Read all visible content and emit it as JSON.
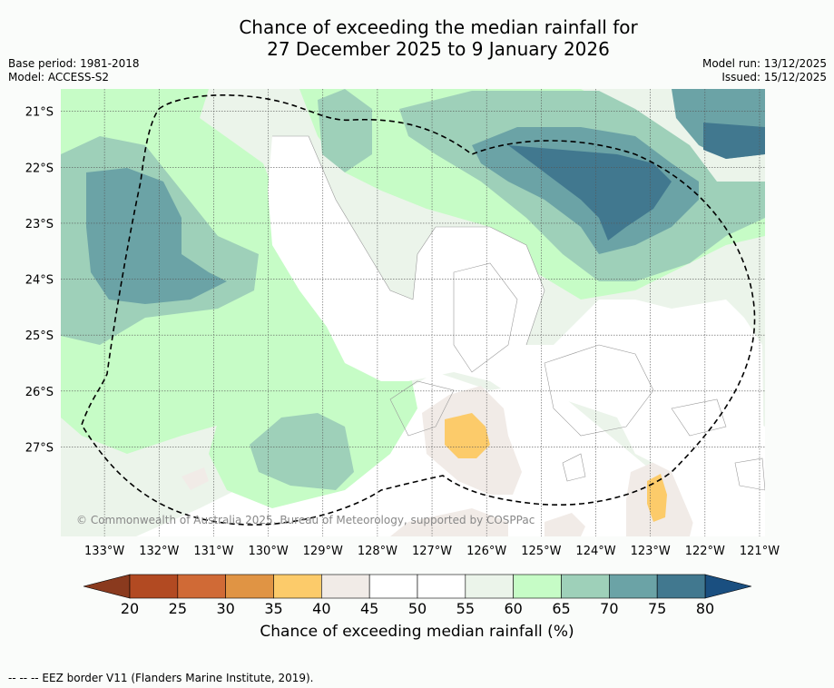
{
  "title": {
    "line1": "Chance of exceeding the median rainfall for",
    "line2": "27 December 2025 to 9 January 2026"
  },
  "meta_left": {
    "base_period": "Base period: 1981-2018",
    "model": "Model: ACCESS-S2"
  },
  "meta_right": {
    "model_run": "Model run: 13/12/2025",
    "issued": "Issued: 15/12/2025"
  },
  "map": {
    "copyright": "© Commonwealth of Australia 2025, Bureau of Meteorology, supported by COSPPac",
    "lat_labels": [
      "21°S",
      "22°S",
      "23°S",
      "24°S",
      "25°S",
      "26°S",
      "27°S"
    ],
    "lon_labels": [
      "133°W",
      "132°W",
      "131°W",
      "130°W",
      "129°W",
      "128°W",
      "127°W",
      "126°W",
      "125°W",
      "124°W",
      "123°W",
      "122°W",
      "121°W"
    ],
    "lon_range": [
      -133.8,
      -120.9
    ],
    "lat_range": [
      -28.6,
      -20.6
    ]
  },
  "colorbar": {
    "ticks": [
      "20",
      "25",
      "30",
      "35",
      "40",
      "45",
      "50",
      "55",
      "60",
      "65",
      "70",
      "75",
      "80"
    ],
    "colors": [
      "#b24a22",
      "#d06a36",
      "#e09444",
      "#fccb6a",
      "#f1ebe7",
      "#ffffff",
      "#ffffff",
      "#ebf4ea",
      "#c6fcc6",
      "#9ed0b9",
      "#6ba3a6",
      "#41788f"
    ],
    "under_color": "#8a3a1e",
    "over_color": "#1a4f80",
    "label": "Chance of exceeding median rainfall (%)"
  },
  "legend": {
    "eez": "--  --  -- EEZ border V11 (Flanders Marine Institute, 2019)."
  }
}
